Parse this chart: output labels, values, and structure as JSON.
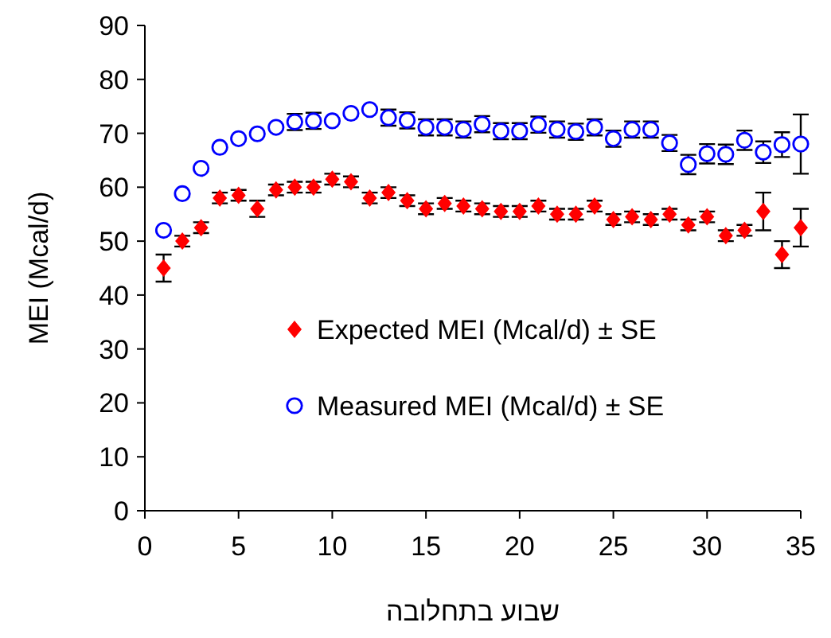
{
  "chart_data": {
    "type": "scatter",
    "xlabel": "שבוע בתחלובה",
    "ylabel": "MEI (Mcal/d)",
    "x": [
      1,
      2,
      3,
      4,
      5,
      6,
      7,
      8,
      9,
      10,
      11,
      12,
      13,
      14,
      15,
      16,
      17,
      18,
      19,
      20,
      21,
      22,
      23,
      24,
      25,
      26,
      27,
      28,
      29,
      30,
      31,
      32,
      33,
      34,
      35
    ],
    "series": [
      {
        "name": "Expected MEI (Mcal/d) ± SE",
        "color": "#ff0000",
        "marker": "diamond",
        "values": [
          45,
          50,
          52.5,
          58,
          58.5,
          56,
          59.5,
          60,
          60,
          61.5,
          61,
          58,
          59,
          57.5,
          56,
          57,
          56.5,
          56,
          55.5,
          55.5,
          56.5,
          55,
          55,
          56.5,
          54,
          54.5,
          54,
          55,
          53,
          54.5,
          51,
          52,
          55.5,
          47.5,
          52.5
        ],
        "errors": [
          2.5,
          1,
          1,
          1,
          1,
          1.5,
          1,
          1,
          1,
          1,
          1,
          1,
          1,
          1,
          1,
          1,
          1,
          1,
          1,
          1,
          1,
          1,
          1,
          1,
          1,
          1,
          1,
          1,
          1,
          1,
          1,
          1,
          3.5,
          2.5,
          3.5
        ]
      },
      {
        "name": "Measured MEI (Mcal/d) ± SE",
        "color": "#0000ff",
        "marker": "circle",
        "values": [
          52,
          58.8,
          63.5,
          67.4,
          69,
          69.9,
          71.1,
          72.1,
          72.3,
          72.3,
          73.7,
          74.4,
          72.9,
          72.4,
          71.1,
          71.1,
          70.7,
          71.7,
          70.4,
          70.4,
          71.6,
          70.7,
          70.3,
          71.1,
          69,
          70.7,
          70.7,
          68.2,
          64.2,
          66.2,
          66.1,
          68.7,
          66.5,
          67.9,
          68
        ],
        "errors": [
          null,
          null,
          null,
          null,
          null,
          null,
          null,
          1.5,
          1.5,
          null,
          null,
          null,
          1.5,
          1.5,
          1.5,
          1.5,
          1.5,
          1.5,
          1.5,
          1.5,
          1.5,
          1.5,
          1.5,
          1.5,
          1.5,
          1.5,
          1.5,
          1.5,
          1.8,
          1.8,
          1.8,
          1.8,
          2,
          2.3,
          5.5
        ]
      }
    ],
    "xlim": [
      0,
      35
    ],
    "xticks": [
      0,
      5,
      10,
      15,
      20,
      25,
      30,
      35
    ],
    "ylim": [
      0,
      90
    ],
    "yticks": [
      0,
      10,
      20,
      30,
      40,
      50,
      60,
      70,
      80,
      90
    ],
    "grid": false,
    "legend": "right"
  }
}
